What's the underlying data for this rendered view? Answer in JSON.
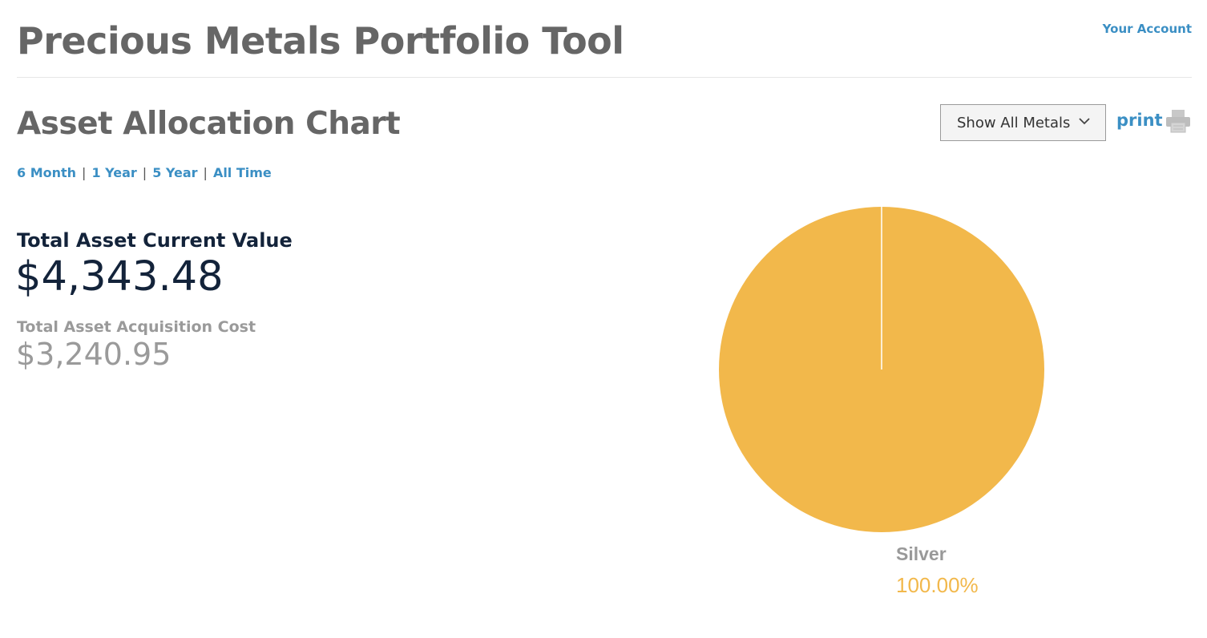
{
  "header": {
    "title": "Precious Metals Portfolio Tool",
    "account_link": "Your Account"
  },
  "section": {
    "title": "Asset Allocation Chart"
  },
  "controls": {
    "metal_filter": {
      "selected": "Show All Metals"
    },
    "print_label": "print"
  },
  "timeframes": [
    {
      "label": "6 Month"
    },
    {
      "label": "1 Year"
    },
    {
      "label": "5 Year"
    },
    {
      "label": "All Time"
    }
  ],
  "timeframe_separator": "|",
  "summary": {
    "current_value_label": "Total Asset Current Value",
    "current_value": "$4,343.48",
    "acquisition_cost_label": "Total Asset Acquisition Cost",
    "acquisition_cost": "$3,240.95"
  },
  "icons": {
    "dropdown": "chevron-down-icon",
    "print": "printer-icon"
  },
  "colors": {
    "link": "#3b8fc4",
    "title": "#666666",
    "value_dark": "#13233a",
    "muted": "#9a9a9a",
    "silver_slice": "#f2b84b"
  },
  "chart_data": {
    "type": "pie",
    "slices": [
      {
        "name": "Silver",
        "value": 100.0,
        "label": "100.00%",
        "color": "#f2b84b"
      }
    ]
  }
}
